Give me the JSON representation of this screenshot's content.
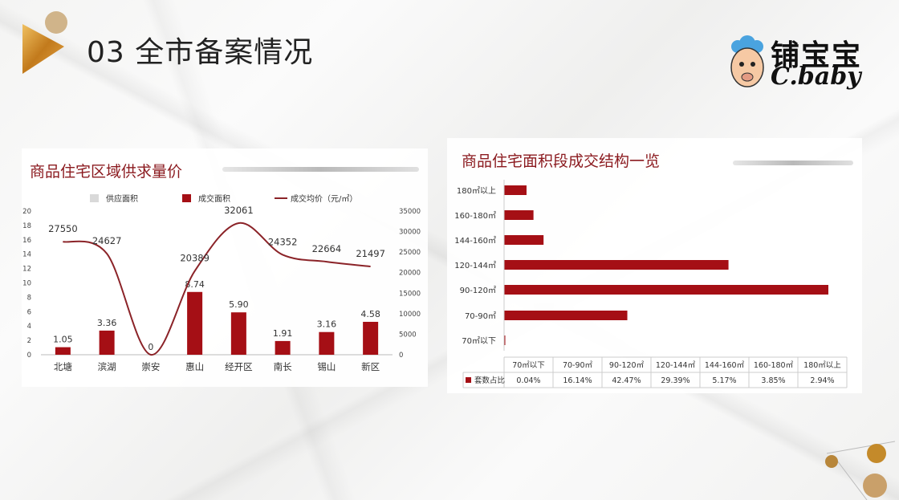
{
  "header": {
    "title": "03 全市备案情况"
  },
  "brand": {
    "name_cn": "铺宝宝",
    "name_en": "C.baby"
  },
  "chart_data": [
    {
      "type": "bar",
      "title": "商品住宅区域供求量价",
      "categories": [
        "北塘",
        "滨湖",
        "崇安",
        "惠山",
        "经开区",
        "南长",
        "锡山",
        "新区"
      ],
      "legend": [
        "供应面积",
        "成交面积",
        "成交均价（元/㎡）"
      ],
      "legend_position": "top",
      "series": [
        {
          "name": "供应面积",
          "type": "bar",
          "axis": "left",
          "color": "#d9d9d9",
          "values": [
            0,
            0,
            0,
            0,
            0,
            0,
            0,
            0
          ]
        },
        {
          "name": "成交面积",
          "type": "bar",
          "axis": "left",
          "color": "#a50f15",
          "values": [
            1.05,
            3.36,
            0,
            8.74,
            5.9,
            1.91,
            3.16,
            4.58
          ],
          "labels": [
            "1.05",
            "3.36",
            "0",
            "8.74",
            "5.90",
            "1.91",
            "3.16",
            "4.58"
          ]
        },
        {
          "name": "成交均价（元/㎡）",
          "type": "line",
          "axis": "right",
          "color": "#8b2328",
          "values": [
            27550,
            24627,
            0,
            20389,
            32061,
            24352,
            22664,
            21497
          ],
          "labels": [
            "27550",
            "24627",
            "",
            "20389",
            "32061",
            "24352",
            "22664",
            "21497"
          ]
        }
      ],
      "y_left": {
        "range": [
          0,
          20
        ],
        "ticks": [
          0,
          2,
          4,
          6,
          8,
          10,
          12,
          14,
          16,
          18,
          20
        ]
      },
      "y_right": {
        "range": [
          0,
          35000
        ],
        "ticks": [
          0,
          5000,
          10000,
          15000,
          20000,
          25000,
          30000,
          35000
        ]
      },
      "grid": false
    },
    {
      "type": "bar",
      "orientation": "horizontal",
      "title": "商品住宅面积段成交结构一览",
      "categories": [
        "70㎡以下",
        "70-90㎡",
        "90-120㎡",
        "120-144㎡",
        "144-160㎡",
        "160-180㎡",
        "180㎡以上"
      ],
      "series": [
        {
          "name": "套数占比",
          "color": "#a50f15",
          "values": [
            0.04,
            16.14,
            42.47,
            29.39,
            5.17,
            3.85,
            2.94
          ],
          "labels": [
            "0.04%",
            "16.14%",
            "42.47%",
            "29.39%",
            "5.17%",
            "3.85%",
            "2.94%"
          ]
        }
      ],
      "table": {
        "row_label": "套数占比",
        "headers": [
          "70㎡以下",
          "70-90㎡",
          "90-120㎡",
          "120-144㎡",
          "144-160㎡",
          "160-180㎡",
          "180㎡以上"
        ]
      },
      "grid": false
    }
  ],
  "colors": {
    "accent": "#a50f15",
    "title_red": "#8b1a1f",
    "gold": "#c48a2a"
  }
}
